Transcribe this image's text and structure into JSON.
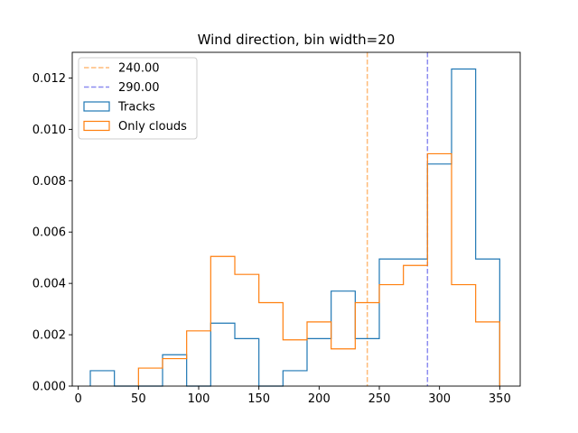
{
  "chart_data": {
    "type": "histogram",
    "title": "Wind direction, bin width=20",
    "xlabel": "",
    "ylabel": "",
    "xlim": [
      -5,
      367
    ],
    "ylim": [
      0,
      0.013
    ],
    "xticks": [
      0,
      50,
      100,
      150,
      200,
      250,
      300,
      350
    ],
    "yticks": [
      0.0,
      0.002,
      0.004,
      0.006,
      0.008,
      0.01,
      0.012
    ],
    "ytick_labels": [
      "0.000",
      "0.002",
      "0.004",
      "0.006",
      "0.008",
      "0.010",
      "0.012"
    ],
    "grid": false,
    "legend_position": "top-left",
    "series": [
      {
        "name": "Tracks",
        "color": "#1f77b4",
        "style": "step",
        "bin_edges": [
          10,
          30,
          50,
          70,
          90,
          110,
          130,
          150,
          170,
          190,
          210,
          230,
          250,
          270,
          290,
          310,
          330,
          350
        ],
        "values": [
          0.0006,
          0.0,
          0.0,
          0.00122,
          0.0,
          0.00245,
          0.00185,
          0.0,
          0.0006,
          0.00185,
          0.0037,
          0.00185,
          0.00495,
          0.00495,
          0.00865,
          0.01235,
          0.00495
        ]
      },
      {
        "name": "Only clouds",
        "color": "#ff7f0e",
        "style": "step",
        "bin_edges": [
          50,
          70,
          90,
          110,
          130,
          150,
          170,
          190,
          210,
          230,
          250,
          270,
          290,
          310,
          330,
          350
        ],
        "values": [
          0.0007,
          0.00107,
          0.00215,
          0.00505,
          0.00435,
          0.00325,
          0.0018,
          0.0025,
          0.00145,
          0.00325,
          0.00395,
          0.0047,
          0.00905,
          0.00395,
          0.0025
        ]
      }
    ],
    "vlines": [
      {
        "label": "240.00",
        "x": 240,
        "color": "#ffbb78",
        "style": "dashed"
      },
      {
        "label": "290.00",
        "x": 290,
        "color": "#8c8cf0",
        "style": "dashed"
      }
    ],
    "legend": [
      "240.00",
      "290.00",
      "Tracks",
      "Only clouds"
    ]
  }
}
